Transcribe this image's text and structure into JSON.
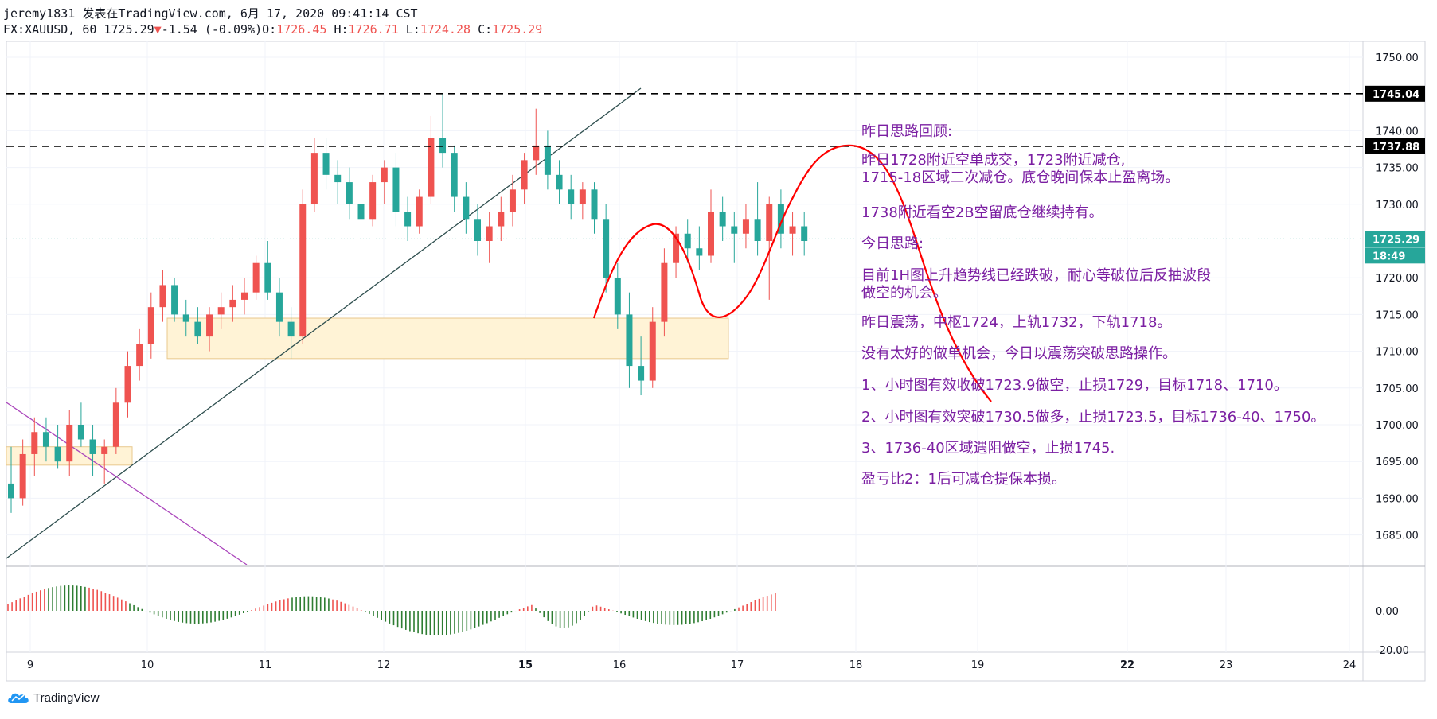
{
  "header": {
    "line1": "jeremy1831 发表在TradingView.com, 6月 17, 2020 09:41:14 CST",
    "symbol": "FX:XAUUSD, 60",
    "price": "1725.29",
    "change": "-1.54",
    "change_pct": "(-0.09%)",
    "o_label": "O:",
    "o_val": "1726.45",
    "h_label": "H:",
    "h_val": "1726.71",
    "l_label": "L:",
    "l_val": "1724.28",
    "c_label": "C:",
    "c_val": "1725.29"
  },
  "price_axis": {
    "ticks": [
      "1750.00",
      "1740.00",
      "1735.00",
      "1730.00",
      "1720.00",
      "1715.00",
      "1710.00",
      "1705.00",
      "1700.00",
      "1695.00",
      "1690.00",
      "1685.00"
    ],
    "tags": {
      "upper_line": "1745.04",
      "lower_line": "1737.88",
      "last_price": "1725.29",
      "countdown": "18:49"
    }
  },
  "indicator_axis": {
    "ticks": [
      "0.00",
      "-20.00"
    ]
  },
  "time_axis": {
    "ticks": [
      "9",
      "10",
      "11",
      "12",
      "15",
      "16",
      "17",
      "18",
      "19",
      "22",
      "23",
      "24"
    ]
  },
  "notes": [
    "昨日思路回顾:",
    "昨日1728附近空单成交，1723附近减仓,",
    "1715-18区域二次减仓。底仓晚间保本止盈离场。",
    "1738附近看空2B空留底仓继续持有。",
    "今日思路:",
    "目前1H图上升趋势线已经跌破，耐心等破位后反抽波段",
    "做空的机会。",
    "昨日震荡，中枢1724，上轨1732，下轨1718。",
    "没有太好的做单机会，今日以震荡突破思路操作。",
    "1、小时图有效收破1723.9做空，止损1729，目标1718、1710。",
    "2、小时图有效突破1730.5做多，止损1723.5，目标1736-40、1750。",
    "3、1736-40区域遇阻做空，止损1745.",
    "盈亏比2：1后可减仓提保本损。"
  ],
  "brand": {
    "name": "TradingView"
  },
  "colors": {
    "up": "#ef5350",
    "down": "#26a69a",
    "note": "#7b1fa2",
    "zone": "#fff3d6",
    "trendline": "#2f4f4f",
    "downtrend": "#ab47bc",
    "forecast": "#ff0000"
  },
  "chart_data": {
    "type": "candlestick",
    "symbol": "FX:XAUUSD",
    "interval": "60",
    "ylim": [
      1682,
      1752
    ],
    "x_ticks": [
      "9",
      "10",
      "11",
      "12",
      "15",
      "16",
      "17",
      "18",
      "19",
      "22",
      "23",
      "24"
    ],
    "candles_ohlc": [
      [
        1692,
        1697,
        1688,
        1690
      ],
      [
        1690,
        1698,
        1689,
        1696
      ],
      [
        1696,
        1701,
        1693,
        1699
      ],
      [
        1699,
        1701,
        1695,
        1697
      ],
      [
        1697,
        1700,
        1694,
        1695
      ],
      [
        1695,
        1702,
        1693,
        1700
      ],
      [
        1700,
        1703,
        1697,
        1698
      ],
      [
        1698,
        1700,
        1693,
        1696
      ],
      [
        1696,
        1698,
        1692,
        1697
      ],
      [
        1697,
        1705,
        1696,
        1703
      ],
      [
        1703,
        1710,
        1701,
        1708
      ],
      [
        1708,
        1713,
        1706,
        1711
      ],
      [
        1711,
        1718,
        1709,
        1716
      ],
      [
        1716,
        1721,
        1714,
        1719
      ],
      [
        1719,
        1720,
        1714,
        1715
      ],
      [
        1715,
        1717,
        1712,
        1714
      ],
      [
        1714,
        1716,
        1711,
        1712
      ],
      [
        1712,
        1716,
        1710,
        1715
      ],
      [
        1715,
        1718,
        1713,
        1716
      ],
      [
        1716,
        1719,
        1714,
        1717
      ],
      [
        1717,
        1720,
        1715,
        1718
      ],
      [
        1718,
        1723,
        1717,
        1722
      ],
      [
        1722,
        1725,
        1717,
        1718
      ],
      [
        1718,
        1720,
        1712,
        1714
      ],
      [
        1714,
        1716,
        1709,
        1712
      ],
      [
        1712,
        1732,
        1711,
        1730
      ],
      [
        1730,
        1739,
        1729,
        1737
      ],
      [
        1737,
        1739,
        1732,
        1734
      ],
      [
        1734,
        1736,
        1730,
        1733
      ],
      [
        1733,
        1735,
        1728,
        1730
      ],
      [
        1730,
        1733,
        1726,
        1728
      ],
      [
        1728,
        1734,
        1727,
        1733
      ],
      [
        1733,
        1736,
        1730,
        1735
      ],
      [
        1735,
        1737,
        1727,
        1729
      ],
      [
        1729,
        1731,
        1725,
        1727
      ],
      [
        1727,
        1732,
        1726,
        1731
      ],
      [
        1731,
        1742,
        1730,
        1739
      ],
      [
        1739,
        1745,
        1735,
        1737
      ],
      [
        1737,
        1738,
        1729,
        1731
      ],
      [
        1731,
        1733,
        1726,
        1728
      ],
      [
        1728,
        1730,
        1723,
        1725
      ],
      [
        1725,
        1729,
        1722,
        1727
      ],
      [
        1727,
        1731,
        1725,
        1729
      ],
      [
        1729,
        1734,
        1727,
        1732
      ],
      [
        1732,
        1737,
        1730,
        1736
      ],
      [
        1736,
        1743,
        1734,
        1738
      ],
      [
        1738,
        1740,
        1732,
        1734
      ],
      [
        1734,
        1736,
        1730,
        1732
      ],
      [
        1732,
        1734,
        1728,
        1730
      ],
      [
        1730,
        1733,
        1728,
        1732
      ],
      [
        1732,
        1733,
        1726,
        1728
      ],
      [
        1728,
        1730,
        1718,
        1720
      ],
      [
        1720,
        1722,
        1713,
        1715
      ],
      [
        1715,
        1718,
        1705,
        1708
      ],
      [
        1708,
        1712,
        1704,
        1706
      ],
      [
        1706,
        1716,
        1705,
        1714
      ],
      [
        1714,
        1724,
        1712,
        1722
      ],
      [
        1722,
        1727,
        1720,
        1726
      ],
      [
        1726,
        1728,
        1722,
        1724
      ],
      [
        1724,
        1727,
        1721,
        1723
      ],
      [
        1723,
        1732,
        1722,
        1729
      ],
      [
        1729,
        1731,
        1725,
        1727
      ],
      [
        1727,
        1729,
        1722,
        1726
      ],
      [
        1726,
        1730,
        1724,
        1728
      ],
      [
        1728,
        1733,
        1723,
        1725
      ],
      [
        1725,
        1731,
        1717,
        1730
      ],
      [
        1730,
        1732,
        1724,
        1726
      ],
      [
        1726,
        1729,
        1723,
        1727
      ],
      [
        1727,
        1729,
        1723,
        1725
      ]
    ],
    "levels": [
      1745.04,
      1737.88
    ],
    "last_price": 1725.29,
    "zones": [
      {
        "from": 1709,
        "to": 1714.5
      },
      {
        "from": 1694.5,
        "to": 1697
      }
    ]
  }
}
